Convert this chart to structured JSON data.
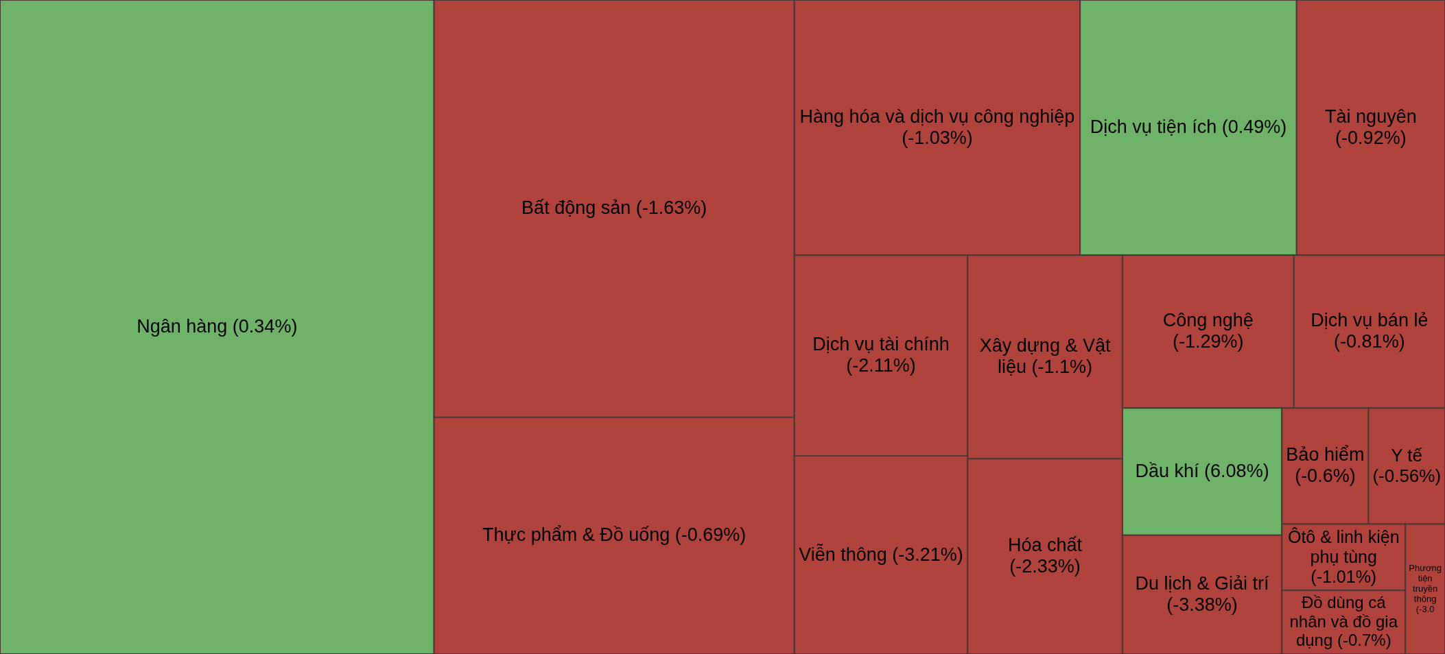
{
  "chart_data": {
    "type": "other",
    "categories": [
      "Ngân hàng",
      "Bất động sản",
      "Thực phẩm & Đồ uống",
      "Hàng hóa và dịch vụ công nghiệp",
      "Dịch vụ tiện ích",
      "Tài nguyên",
      "Dịch vụ tài chính",
      "Xây dựng & Vật liệu",
      "Viễn thông",
      "Hóa chất",
      "Công nghệ",
      "Dịch vụ bán lẻ",
      "Dầu khí",
      "Du lịch & Giải trí",
      "Bảo hiểm",
      "Y tế",
      "Ôtô & linh kiện phụ tùng",
      "Đồ dùng cá nhân và đồ gia dụng",
      "Phương tiện truyền thông"
    ],
    "values": [
      0.34,
      -1.63,
      -0.69,
      -1.03,
      0.49,
      -0.92,
      -2.11,
      -1.1,
      -3.21,
      -2.33,
      -1.29,
      -0.81,
      6.08,
      -3.38,
      -0.6,
      -0.56,
      -1.01,
      -0.7,
      null
    ],
    "value_labels": [
      "(0.34%)",
      "(-1.63%)",
      "(-0.69%)",
      "(-1.03%)",
      "(0.49%)",
      "(-0.92%)",
      "(-2.11%)",
      "(-1.1%)",
      "(-3.21%)",
      "(-2.33%)",
      "(-1.29%)",
      "(-0.81%)",
      "(6.08%)",
      "(-3.38%)",
      "(-0.6%)",
      "(-0.56%)",
      "(-1.01%)",
      "(-0.7%)",
      "(-3.0"
    ],
    "colors": [
      "#6fb369",
      "#b0443d",
      "#b0443d",
      "#b0443d",
      "#6fb369",
      "#b0443d",
      "#b0443d",
      "#b0443d",
      "#b0443d",
      "#b0443d",
      "#b0443d",
      "#b0443d",
      "#6fb369",
      "#b0443d",
      "#b0443d",
      "#b0443d",
      "#b0443d",
      "#b0443d",
      "#b0443d"
    ]
  }
}
